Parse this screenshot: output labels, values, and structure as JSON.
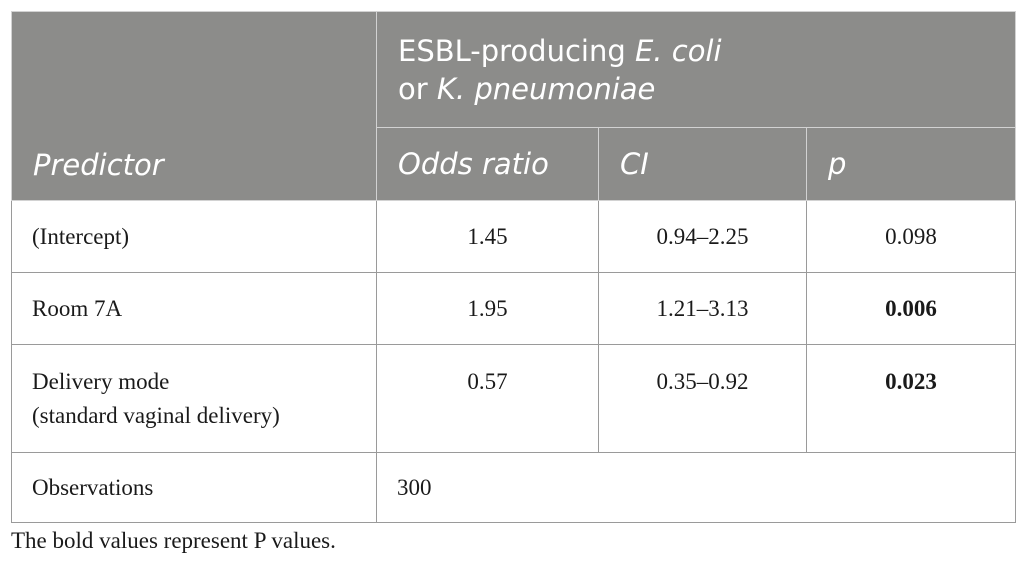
{
  "table": {
    "header": {
      "group_prefix": "ESBL-producing ",
      "group_ecoli": "E. coli",
      "group_or": "or ",
      "group_kpneu": "K. pneumoniae",
      "predictor": "Predictor",
      "odds_ratio": "Odds ratio",
      "ci": "CI",
      "p": "p"
    },
    "rows": [
      {
        "predictor": "(Intercept)",
        "odds_ratio": "1.45",
        "ci": "0.94–2.25",
        "p": "0.098",
        "p_bold": false
      },
      {
        "predictor": "Room 7A",
        "odds_ratio": "1.95",
        "ci": "1.21–3.13",
        "p": "0.006",
        "p_bold": true
      },
      {
        "predictor_line1": "Delivery mode",
        "predictor_line2": "(standard vaginal delivery)",
        "odds_ratio": "0.57",
        "ci": "0.35–0.92",
        "p": "0.023",
        "p_bold": true
      }
    ],
    "observations": {
      "label": "Observations",
      "value": "300"
    }
  },
  "footnote": "The bold values represent P values.",
  "colors": {
    "header_bg": "#8c8c8a",
    "header_text": "#ffffff",
    "border": "#9a9a9a"
  }
}
